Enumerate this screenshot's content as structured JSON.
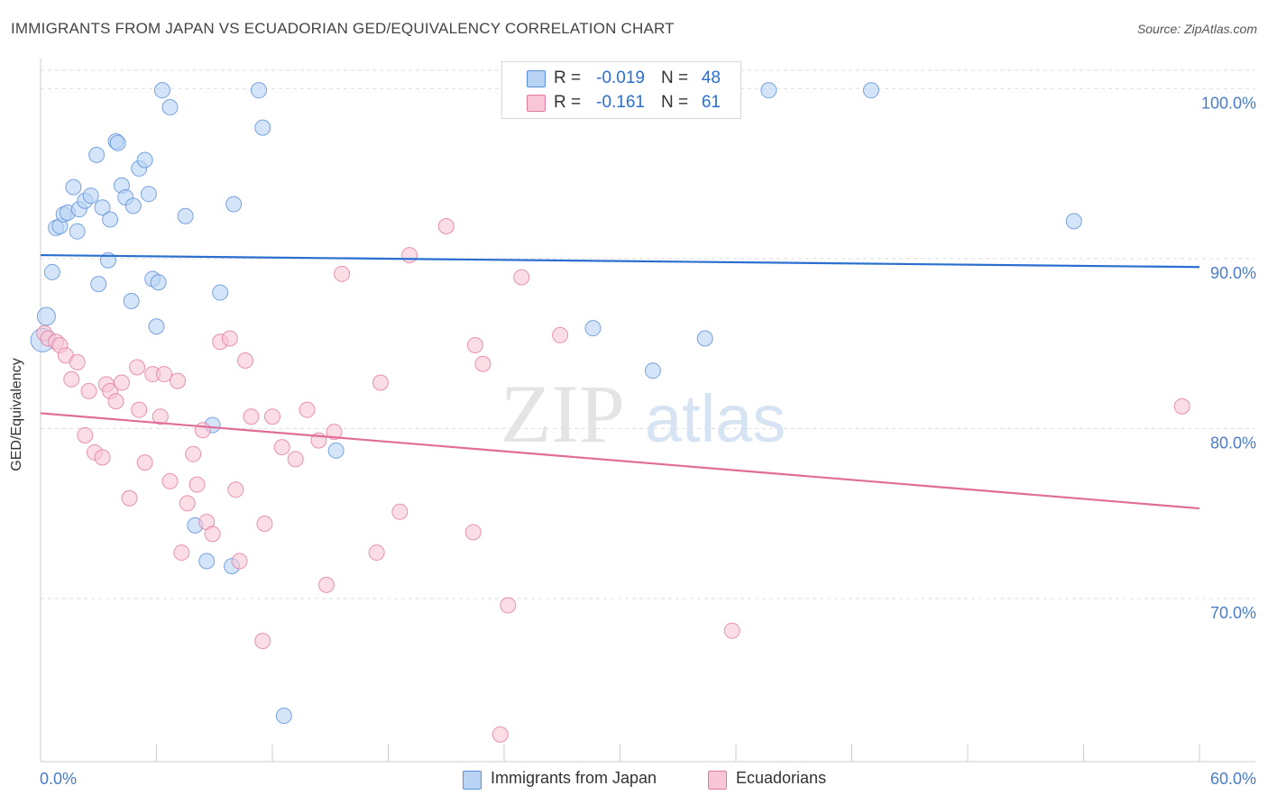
{
  "header": {
    "title": "IMMIGRANTS FROM JAPAN VS ECUADORIAN GED/EQUIVALENCY CORRELATION CHART",
    "source": "Source: ZipAtlas.com"
  },
  "watermark": {
    "part1": "ZIP",
    "part2": "atlas"
  },
  "legend_top": {
    "rows": [
      {
        "r_label": "R =",
        "r_value": "-0.019",
        "n_label": "N =",
        "n_value": "48"
      },
      {
        "r_label": "R =",
        "r_value": "-0.161",
        "n_label": "N =",
        "n_value": "61"
      }
    ]
  },
  "legend_bottom": {
    "items": [
      {
        "label": "Immigrants from Japan"
      },
      {
        "label": "Ecuadorians"
      }
    ]
  },
  "colors": {
    "blue_fill": "#b9d3f5",
    "blue_stroke": "#5b8fd6",
    "blue_line": "#2a6fcf",
    "pink_fill": "#f8c6d6",
    "pink_stroke": "#e07aa0",
    "pink_line": "#e06c98",
    "axis_text": "#4a7cc9",
    "grid": "#dddddd"
  },
  "chart_data": {
    "type": "scatter",
    "title": "IMMIGRANTS FROM JAPAN VS ECUADORIAN GED/EQUIVALENCY CORRELATION CHART",
    "xlabel": "",
    "ylabel": "GED/Equivalency",
    "xlim": [
      0,
      60
    ],
    "ylim": [
      60.4,
      101.5
    ],
    "x_tick_labels": [
      "0.0%",
      "60.0%"
    ],
    "y_ticks": [
      70,
      80,
      90,
      100
    ],
    "y_tick_labels": [
      "70.0%",
      "80.0%",
      "90.0%",
      "100.0%"
    ],
    "grid": true,
    "legend_position": "top-center",
    "series": [
      {
        "name": "Immigrants from Japan",
        "color": "#5b8fd6",
        "R": -0.019,
        "N": 48,
        "trend": {
          "x": [
            0,
            60
          ],
          "y": [
            90.2,
            89.5
          ]
        },
        "points": [
          {
            "x": 0.3,
            "y": 86.6,
            "s": 10
          },
          {
            "x": 0.6,
            "y": 89.2
          },
          {
            "x": 0.8,
            "y": 91.8
          },
          {
            "x": 1.0,
            "y": 91.9
          },
          {
            "x": 1.2,
            "y": 92.6
          },
          {
            "x": 1.4,
            "y": 92.7
          },
          {
            "x": 1.7,
            "y": 94.2
          },
          {
            "x": 1.9,
            "y": 91.6
          },
          {
            "x": 2.0,
            "y": 92.9
          },
          {
            "x": 2.3,
            "y": 93.4
          },
          {
            "x": 2.6,
            "y": 93.7
          },
          {
            "x": 2.9,
            "y": 96.1
          },
          {
            "x": 3.0,
            "y": 88.5
          },
          {
            "x": 3.2,
            "y": 93.0
          },
          {
            "x": 3.5,
            "y": 89.9
          },
          {
            "x": 3.6,
            "y": 92.3
          },
          {
            "x": 3.9,
            "y": 96.9
          },
          {
            "x": 4.0,
            "y": 96.8
          },
          {
            "x": 4.2,
            "y": 94.3
          },
          {
            "x": 4.4,
            "y": 93.6
          },
          {
            "x": 4.7,
            "y": 87.5
          },
          {
            "x": 4.8,
            "y": 93.1
          },
          {
            "x": 5.1,
            "y": 95.3
          },
          {
            "x": 5.4,
            "y": 95.8
          },
          {
            "x": 5.6,
            "y": 93.8
          },
          {
            "x": 5.8,
            "y": 88.8
          },
          {
            "x": 6.0,
            "y": 86.0
          },
          {
            "x": 6.1,
            "y": 88.6
          },
          {
            "x": 6.3,
            "y": 99.9
          },
          {
            "x": 6.7,
            "y": 98.9
          },
          {
            "x": 7.5,
            "y": 92.5
          },
          {
            "x": 8.0,
            "y": 74.3
          },
          {
            "x": 8.6,
            "y": 72.2
          },
          {
            "x": 8.9,
            "y": 80.2
          },
          {
            "x": 9.3,
            "y": 88.0
          },
          {
            "x": 9.9,
            "y": 71.9
          },
          {
            "x": 10.0,
            "y": 93.2
          },
          {
            "x": 11.3,
            "y": 99.9
          },
          {
            "x": 11.5,
            "y": 97.7
          },
          {
            "x": 12.6,
            "y": 63.1
          },
          {
            "x": 15.3,
            "y": 78.7
          },
          {
            "x": 28.6,
            "y": 85.9
          },
          {
            "x": 31.7,
            "y": 83.4
          },
          {
            "x": 34.4,
            "y": 85.3
          },
          {
            "x": 37.7,
            "y": 99.9
          },
          {
            "x": 43.0,
            "y": 99.9
          },
          {
            "x": 53.5,
            "y": 92.2
          },
          {
            "x": 0.1,
            "y": 85.2,
            "s": 13
          }
        ]
      },
      {
        "name": "Ecuadorians",
        "color": "#e07aa0",
        "R": -0.161,
        "N": 61,
        "trend": {
          "x": [
            0,
            60
          ],
          "y": [
            80.9,
            75.3
          ]
        },
        "points": [
          {
            "x": 0.2,
            "y": 85.6
          },
          {
            "x": 0.4,
            "y": 85.3
          },
          {
            "x": 0.8,
            "y": 85.1
          },
          {
            "x": 1.0,
            "y": 84.9
          },
          {
            "x": 1.3,
            "y": 84.3
          },
          {
            "x": 1.6,
            "y": 82.9
          },
          {
            "x": 1.9,
            "y": 83.9
          },
          {
            "x": 2.3,
            "y": 79.6
          },
          {
            "x": 2.5,
            "y": 82.2
          },
          {
            "x": 2.8,
            "y": 78.6
          },
          {
            "x": 3.2,
            "y": 78.3
          },
          {
            "x": 3.4,
            "y": 82.6
          },
          {
            "x": 3.6,
            "y": 82.2
          },
          {
            "x": 3.9,
            "y": 81.6
          },
          {
            "x": 4.2,
            "y": 82.7
          },
          {
            "x": 4.6,
            "y": 75.9
          },
          {
            "x": 5.0,
            "y": 83.6
          },
          {
            "x": 5.1,
            "y": 81.1
          },
          {
            "x": 5.4,
            "y": 78.0
          },
          {
            "x": 5.8,
            "y": 83.2
          },
          {
            "x": 6.2,
            "y": 80.7
          },
          {
            "x": 6.4,
            "y": 83.2
          },
          {
            "x": 6.7,
            "y": 76.9
          },
          {
            "x": 7.1,
            "y": 82.8
          },
          {
            "x": 7.3,
            "y": 72.7
          },
          {
            "x": 7.6,
            "y": 75.6
          },
          {
            "x": 7.9,
            "y": 78.5
          },
          {
            "x": 8.1,
            "y": 76.7
          },
          {
            "x": 8.4,
            "y": 79.9
          },
          {
            "x": 8.6,
            "y": 74.5
          },
          {
            "x": 8.9,
            "y": 73.8
          },
          {
            "x": 9.3,
            "y": 85.1
          },
          {
            "x": 9.8,
            "y": 85.3
          },
          {
            "x": 10.1,
            "y": 76.4
          },
          {
            "x": 10.3,
            "y": 72.2
          },
          {
            "x": 10.6,
            "y": 84.0
          },
          {
            "x": 10.9,
            "y": 80.7
          },
          {
            "x": 11.5,
            "y": 67.5
          },
          {
            "x": 11.6,
            "y": 74.4
          },
          {
            "x": 12.0,
            "y": 80.7
          },
          {
            "x": 12.5,
            "y": 78.9
          },
          {
            "x": 13.2,
            "y": 78.2
          },
          {
            "x": 13.8,
            "y": 81.1
          },
          {
            "x": 14.4,
            "y": 79.3
          },
          {
            "x": 14.8,
            "y": 70.8
          },
          {
            "x": 15.2,
            "y": 79.8
          },
          {
            "x": 15.6,
            "y": 89.1
          },
          {
            "x": 17.4,
            "y": 72.7
          },
          {
            "x": 17.6,
            "y": 82.7
          },
          {
            "x": 18.6,
            "y": 75.1
          },
          {
            "x": 19.1,
            "y": 90.2
          },
          {
            "x": 21.0,
            "y": 91.9
          },
          {
            "x": 22.4,
            "y": 73.9
          },
          {
            "x": 22.5,
            "y": 84.9
          },
          {
            "x": 22.9,
            "y": 83.8
          },
          {
            "x": 23.8,
            "y": 62.0
          },
          {
            "x": 24.2,
            "y": 69.6
          },
          {
            "x": 24.9,
            "y": 88.9
          },
          {
            "x": 26.9,
            "y": 85.5
          },
          {
            "x": 35.8,
            "y": 68.1
          },
          {
            "x": 59.1,
            "y": 81.3
          }
        ]
      }
    ]
  }
}
